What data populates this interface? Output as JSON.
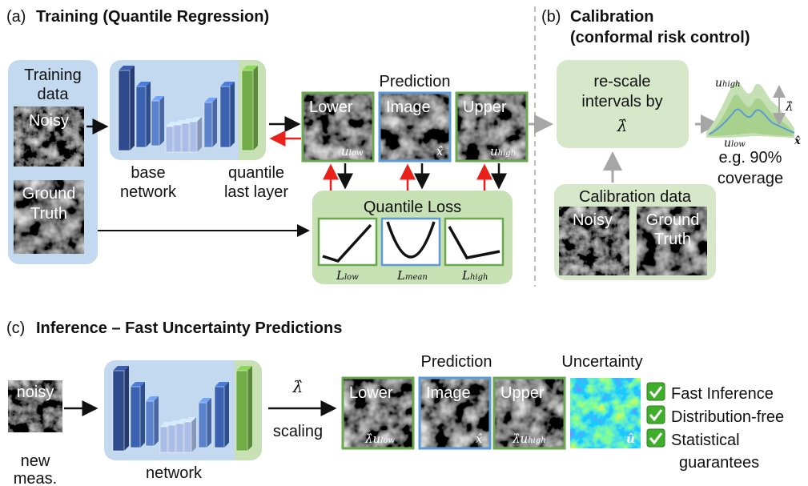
{
  "a": {
    "label": "(a)",
    "title": "Training (Quantile Regression)",
    "training_data": [
      "Training",
      "data"
    ],
    "noisy": "Noisy",
    "ground_truth": [
      "Ground",
      "Truth"
    ],
    "base_network": [
      "base",
      "network"
    ],
    "quantile_last_layer": [
      "quantile",
      "last layer"
    ],
    "prediction": "Prediction",
    "lower": "Lower",
    "image": "Image",
    "upper": "Upper",
    "u_low": {
      "base": "u",
      "sub": "low"
    },
    "x_hat": "x̂",
    "u_high": {
      "base": "u",
      "sub": "high"
    },
    "quantile_loss": "Quantile Loss",
    "l_low": {
      "base": "L",
      "sub": "low"
    },
    "l_mean": {
      "base": "L",
      "sub": "mean"
    },
    "l_high": {
      "base": "L",
      "sub": "high"
    }
  },
  "b": {
    "label": "(b)",
    "title": [
      "Calibration",
      "(conformal risk control)"
    ],
    "rescale": [
      "re-scale",
      "intervals by"
    ],
    "lambda": "λ̂",
    "calibration_data": "Calibration data",
    "noisy": "Noisy",
    "ground_truth": [
      "Ground",
      "Truth"
    ],
    "u_high": {
      "base": "u",
      "sub": "high"
    },
    "lambda_plot": "λ̂",
    "u_low": {
      "base": "u",
      "sub": "low"
    },
    "x_hat": "x̂",
    "coverage": [
      "e.g. 90%",
      "coverage"
    ]
  },
  "c": {
    "label": "(c)",
    "title": "Inference – Fast Uncertainty Predictions",
    "noisy": "noisy",
    "new_meas": [
      "new",
      "meas."
    ],
    "network": "network",
    "lambda": "λ̂",
    "scaling": "scaling",
    "prediction": "Prediction",
    "uncertainty": "Uncertainty",
    "lower": "Lower",
    "image": "Image",
    "upper": "Upper",
    "lower_scaled": {
      "scale": "λ̂",
      "base": "u",
      "sub": "low"
    },
    "x_hat": "x̂",
    "upper_scaled": {
      "scale": "λ̂",
      "base": "u",
      "sub": "high"
    },
    "u_hat": "û",
    "checklist": [
      "Fast Inference",
      "Distribution-free",
      [
        "Statistical",
        "guarantees"
      ]
    ]
  }
}
